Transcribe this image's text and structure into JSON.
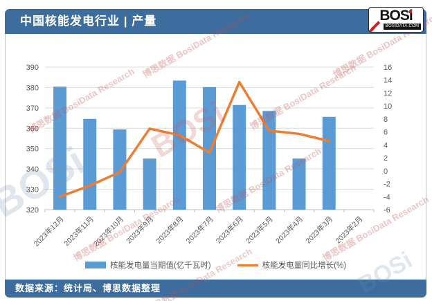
{
  "header": {
    "title": "中国核能发电行业 | 产量",
    "logo": {
      "brand": "BOSi",
      "domain": "BOSIDATA.COM"
    }
  },
  "footer": {
    "source": "数据来源：统计局、博思数据整理"
  },
  "legend": [
    {
      "label": "核能发电量当期值(亿千瓦时)",
      "type": "bar",
      "color": "#5B9BD5"
    },
    {
      "label": "核能发电量同比增长(%)",
      "type": "line",
      "color": "#ED7D31"
    }
  ],
  "watermark": {
    "cn": "博思数据",
    "en": "BosiData Research",
    "brand": "BOSi"
  },
  "colors": {
    "banner_blue": "#3c6d9e",
    "bar_blue": "#5B9BD5",
    "line_orange": "#ED7D31",
    "axis_text": "#595959",
    "gridline": "#d9d9d9"
  },
  "chart_data": {
    "type": "bar",
    "subtype": "combo-bar-line",
    "title": "中国核能发电行业 | 产量",
    "categories": [
      "2023年12月",
      "2023年11月",
      "2023年10月",
      "2023年9月",
      "2023年8月",
      "2023年7月",
      "2023年6月",
      "2023年5月",
      "2023年4月",
      "2023年3月",
      "2023年2月"
    ],
    "series": [
      {
        "name": "核能发电量当期值(亿千瓦时)",
        "type": "bar",
        "axis": "left",
        "color": "#5B9BD5",
        "values": [
          380.4,
          364.6,
          359.4,
          345.1,
          383.4,
          380.2,
          371.4,
          368.5,
          345.1,
          365.6,
          null
        ]
      },
      {
        "name": "核能发电量同比增长(%)",
        "type": "line",
        "axis": "right",
        "color": "#ED7D31",
        "values": [
          -4.0,
          -2.3,
          -0.2,
          6.5,
          5.5,
          2.8,
          13.7,
          6.2,
          5.7,
          4.6,
          null
        ]
      }
    ],
    "left_axis": {
      "min": 320,
      "max": 390,
      "step": 10
    },
    "right_axis": {
      "min": -6,
      "max": 16,
      "step": 2
    },
    "grid": true,
    "legend_position": "bottom",
    "x_label_rotation": -45
  }
}
